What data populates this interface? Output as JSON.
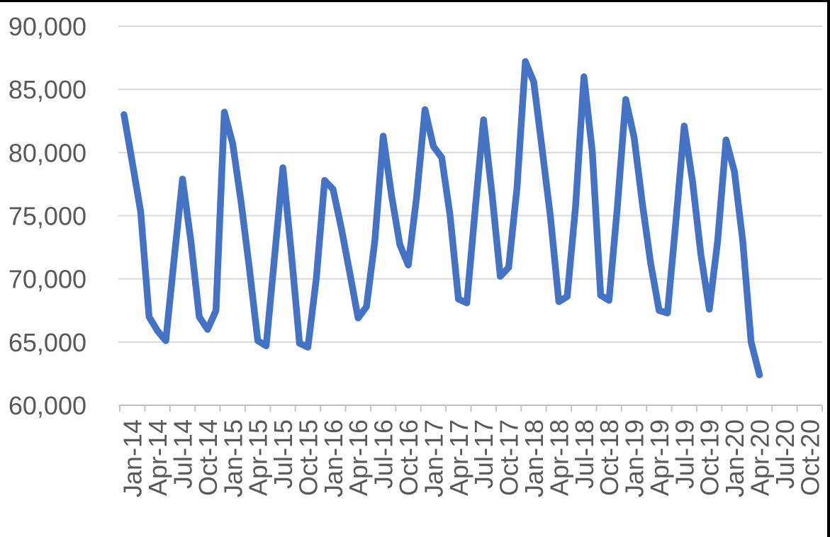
{
  "chart_data": {
    "type": "line",
    "title": "",
    "xlabel": "",
    "ylabel": "",
    "legend": "none",
    "grid": "horizontal",
    "x": [
      "Jan-14",
      "Feb-14",
      "Mar-14",
      "Apr-14",
      "May-14",
      "Jun-14",
      "Jul-14",
      "Aug-14",
      "Sep-14",
      "Oct-14",
      "Nov-14",
      "Dec-14",
      "Jan-15",
      "Feb-15",
      "Mar-15",
      "Apr-15",
      "May-15",
      "Jun-15",
      "Jul-15",
      "Aug-15",
      "Sep-15",
      "Oct-15",
      "Nov-15",
      "Dec-15",
      "Jan-16",
      "Feb-16",
      "Mar-16",
      "Apr-16",
      "May-16",
      "Jun-16",
      "Jul-16",
      "Aug-16",
      "Sep-16",
      "Oct-16",
      "Nov-16",
      "Dec-16",
      "Jan-17",
      "Feb-17",
      "Mar-17",
      "Apr-17",
      "May-17",
      "Jun-17",
      "Jul-17",
      "Aug-17",
      "Sep-17",
      "Oct-17",
      "Nov-17",
      "Dec-17",
      "Jan-18",
      "Feb-18",
      "Mar-18",
      "Apr-18",
      "May-18",
      "Jun-18",
      "Jul-18",
      "Aug-18",
      "Sep-18",
      "Oct-18",
      "Nov-18",
      "Dec-18",
      "Jan-19",
      "Feb-19",
      "Mar-19",
      "Apr-19",
      "May-19",
      "Jun-19",
      "Jul-19",
      "Aug-19",
      "Sep-19",
      "Oct-19",
      "Nov-19",
      "Dec-19",
      "Jan-20",
      "Feb-20",
      "Mar-20",
      "Apr-20",
      "May-20"
    ],
    "values": [
      83000,
      79200,
      75300,
      67000,
      65900,
      65100,
      71600,
      77900,
      73000,
      67000,
      66000,
      67500,
      83200,
      80700,
      76100,
      70800,
      65100,
      64700,
      71700,
      78800,
      72100,
      64900,
      64600,
      70000,
      77800,
      77100,
      74000,
      70500,
      66900,
      67800,
      73000,
      81300,
      76600,
      72700,
      71100,
      76500,
      83400,
      80500,
      79600,
      75000,
      68400,
      68100,
      75500,
      82600,
      76800,
      70200,
      70900,
      77200,
      87200,
      85600,
      80300,
      74900,
      68200,
      68600,
      75700,
      86000,
      80100,
      68700,
      68300,
      75700,
      84200,
      81200,
      75900,
      71200,
      67500,
      67300,
      74500,
      82100,
      77700,
      71900,
      67600,
      73000,
      81000,
      78500,
      73000,
      65000,
      62400
    ],
    "x_axis": {
      "total_category_slots": 84,
      "tick_interval_months": 3,
      "tick_labels": [
        "Jan-14",
        "Apr-14",
        "Jul-14",
        "Oct-14",
        "Jan-15",
        "Apr-15",
        "Jul-15",
        "Oct-15",
        "Jan-16",
        "Apr-16",
        "Jul-16",
        "Oct-16",
        "Jan-17",
        "Apr-17",
        "Jul-17",
        "Oct-17",
        "Jan-18",
        "Apr-18",
        "Jul-18",
        "Oct-18",
        "Jan-19",
        "Apr-19",
        "Jul-19",
        "Oct-19",
        "Jan-20",
        "Apr-20",
        "Jul-20",
        "Oct-20"
      ]
    },
    "y_axis": {
      "min": 60000,
      "max": 90000,
      "step": 5000,
      "tick_labels": [
        "90,000",
        "85,000",
        "80,000",
        "75,000",
        "70,000",
        "65,000",
        "60,000"
      ]
    },
    "colors": {
      "series": "#4472C4",
      "gridline": "#D9D9D9",
      "axis_line": "#BFBFBF",
      "tick_mark": "#C6C6C6",
      "axis_label": "#595959",
      "background": "#FFFFFF",
      "crop_border": "#000000"
    }
  }
}
